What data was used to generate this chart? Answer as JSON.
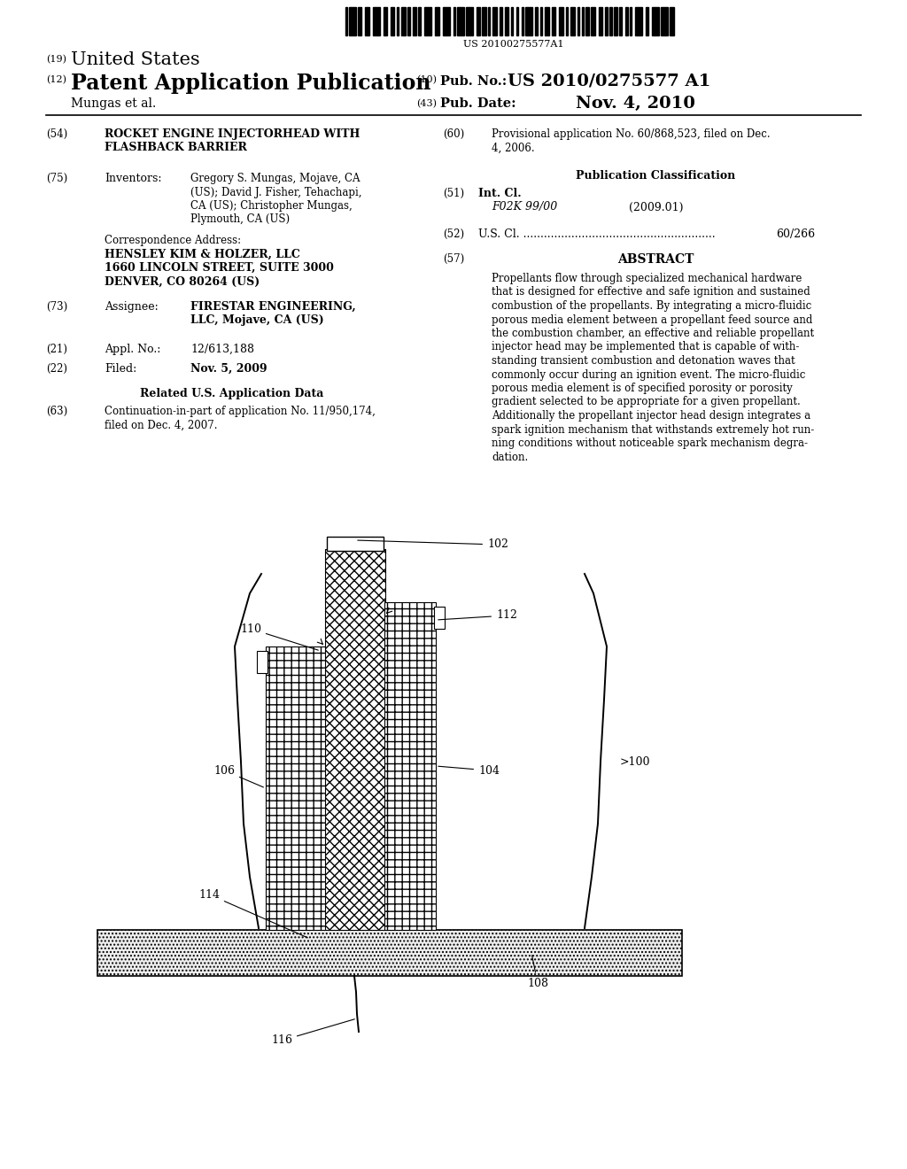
{
  "bg_color": "#ffffff",
  "barcode_text": "US 20100275577A1",
  "header": {
    "label19": "(19)",
    "united_states": "United States",
    "label12": "(12)",
    "patent_app_pub": "Patent Application Publication",
    "label10": "(10)",
    "pub_no_label": "Pub. No.:",
    "pub_no_value": "US 2010/0275577 A1",
    "author": "Mungas et al.",
    "label43": "(43)",
    "pub_date_label": "Pub. Date:",
    "pub_date_value": "Nov. 4, 2010"
  },
  "left_col": {
    "label54": "(54)",
    "title_line1": "ROCKET ENGINE INJECTORHEAD WITH",
    "title_line2": "FLASHBACK BARRIER",
    "label75": "(75)",
    "inventors_label": "Inventors:",
    "inventors_text": "Gregory S. Mungas, Mojave, CA\n(US); David J. Fisher, Tehachapi,\nCA (US); Christopher Mungas,\nPlymouth, CA (US)",
    "corr_address_label": "Correspondence Address:",
    "corr_line1": "HENSLEY KIM & HOLZER, LLC",
    "corr_line2": "1660 LINCOLN STREET, SUITE 3000",
    "corr_line3": "DENVER, CO 80264 (US)",
    "label73": "(73)",
    "assignee_label": "Assignee:",
    "assignee_text": "FIRESTAR ENGINEERING,\nLLC, Mojave, CA (US)",
    "label21": "(21)",
    "appl_no_label": "Appl. No.:",
    "appl_no_value": "12/613,188",
    "label22": "(22)",
    "filed_label": "Filed:",
    "filed_value": "Nov. 5, 2009",
    "related_title": "Related U.S. Application Data",
    "label63": "(63)",
    "related_text": "Continuation-in-part of application No. 11/950,174,\nfiled on Dec. 4, 2007."
  },
  "right_col": {
    "label60": "(60)",
    "prov_app_text": "Provisional application No. 60/868,523, filed on Dec.\n4, 2006.",
    "pub_class_title": "Publication Classification",
    "label51": "(51)",
    "int_cl_label": "Int. Cl.",
    "int_cl_value": "F02K 99/00",
    "int_cl_date": "(2009.01)",
    "label52": "(52)",
    "us_cl_label": "U.S. Cl. ........................................................",
    "us_cl_value": "60/266",
    "label57": "(57)",
    "abstract_title": "ABSTRACT",
    "abstract_text": "Propellants flow through specialized mechanical hardware\nthat is designed for effective and safe ignition and sustained\ncombustion of the propellants. By integrating a micro-fluidic\nporous media element between a propellant feed source and\nthe combustion chamber, an effective and reliable propellant\ninjector head may be implemented that is capable of with-\nstanding transient combustion and detonation waves that\ncommonly occur during an ignition event. The micro-fluidic\nporous media element is of specified porosity or porosity\ngradient selected to be appropriate for a given propellant.\nAdditionally the propellant injector head design integrates a\nspark ignition mechanism that withstands extremely hot run-\nning conditions without noticeable spark mechanism degra-\ndation."
  }
}
